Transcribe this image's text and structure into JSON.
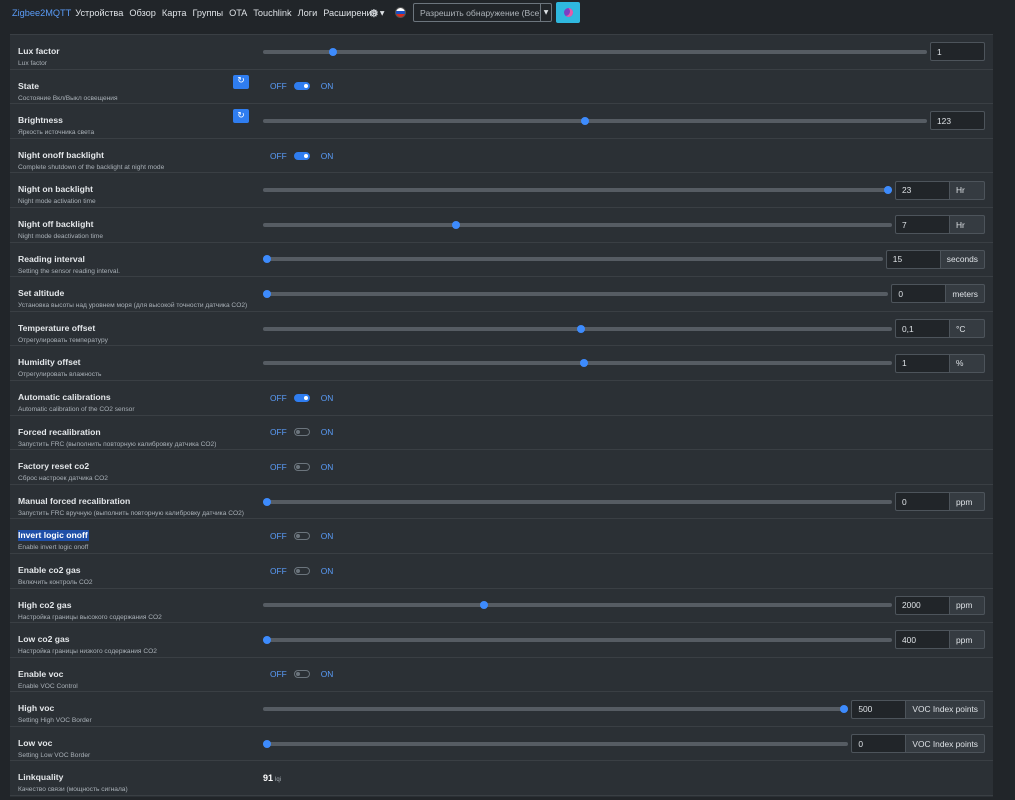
{
  "nav": {
    "brand": "Zigbee2MQTT",
    "items": [
      "Устройства",
      "Обзор",
      "Карта",
      "Группы",
      "OTA",
      "Touchlink",
      "Логи",
      "Расширения"
    ],
    "settings_icon": "gear-icon",
    "language_icon": "flag-ru-icon",
    "permit_join_select": "Разрешить обнаружение (Все)",
    "theme_icon": "theme-toggle-icon"
  },
  "toggle_labels": {
    "off": "OFF",
    "on": "ON"
  },
  "colors": {
    "accent": "#3d8bfd",
    "background": "#212529",
    "panel": "#2b3035",
    "selection": "#1f4fa8"
  },
  "rows": [
    {
      "key": "lux-factor",
      "type": "slider",
      "title": "Lux factor",
      "description": "Lux factor",
      "value": "1",
      "unit": null,
      "level": 0.1
    },
    {
      "key": "state",
      "type": "toggle",
      "title": "State",
      "description": "Состояние Вкл/Выкл освещения",
      "on": true,
      "refresh": true
    },
    {
      "key": "brightness",
      "type": "slider",
      "title": "Brightness",
      "description": "Яркость источника света",
      "value": "123",
      "unit": null,
      "level": 0.484,
      "refresh": true
    },
    {
      "key": "night-onoff-backlight",
      "type": "toggle",
      "title": "Night onoff backlight",
      "description": "Complete shutdown of the backlight at night mode",
      "on": true
    },
    {
      "key": "night-on-backlight",
      "type": "slider",
      "title": "Night on backlight",
      "description": "Night mode activation time",
      "value": "23",
      "unit": "Hr",
      "level": 1.0
    },
    {
      "key": "night-off-backlight",
      "type": "slider",
      "title": "Night off backlight",
      "description": "Night mode deactivation time",
      "value": "7",
      "unit": "Hr",
      "level": 0.304
    },
    {
      "key": "reading-interval",
      "type": "slider",
      "title": "Reading interval",
      "description": "Setting the sensor reading interval.",
      "value": "15",
      "unit": "seconds",
      "level": 0.0
    },
    {
      "key": "set-altitude",
      "type": "slider",
      "title": "Set altitude",
      "description": "Установка высоты над уровнем моря (для высокой точности датчика CO2)",
      "value": "0",
      "unit": "meters",
      "level": 0.0
    },
    {
      "key": "temperature-offset",
      "type": "slider",
      "title": "Temperature offset",
      "description": "Отрегулировать температуру",
      "value": "0,1",
      "unit": "°C",
      "level": 0.506
    },
    {
      "key": "humidity-offset",
      "type": "slider",
      "title": "Humidity offset",
      "description": "Отрегулировать влажность",
      "value": "1",
      "unit": "%",
      "level": 0.51
    },
    {
      "key": "automatic-calibrations",
      "type": "toggle",
      "title": "Automatic calibrations",
      "description": "Automatic calibration of the CO2 sensor",
      "on": true
    },
    {
      "key": "forced-recalibration",
      "type": "toggle",
      "title": "Forced recalibration",
      "description": "Запустить FRC (выполнить повторную калибровку датчика CO2)",
      "on": false
    },
    {
      "key": "factory-reset-co2",
      "type": "toggle",
      "title": "Factory reset co2",
      "description": "Сброс настроек датчика CO2",
      "on": false
    },
    {
      "key": "manual-forced-recalibration",
      "type": "slider",
      "title": "Manual forced recalibration",
      "description": "Запустить FRC вручную (выполнить повторную калибровку датчика CO2)",
      "value": "0",
      "unit": "ppm",
      "level": 0.0
    },
    {
      "key": "invert-logic-onoff",
      "type": "toggle",
      "title": "Invert logic onoff",
      "description": "Enable invert logic onoff",
      "on": false,
      "selected": true
    },
    {
      "key": "enable-co2-gas",
      "type": "toggle",
      "title": "Enable co2 gas",
      "description": "Включить контроль CO2",
      "on": false
    },
    {
      "key": "high-co2-gas",
      "type": "slider",
      "title": "High co2 gas",
      "description": "Настройка границы высокого содержания CO2",
      "value": "2000",
      "unit": "ppm",
      "level": 0.349
    },
    {
      "key": "low-co2-gas",
      "type": "slider",
      "title": "Low co2 gas",
      "description": "Настройка границы низкого содержания CO2",
      "value": "400",
      "unit": "ppm",
      "level": 0.0
    },
    {
      "key": "enable-voc",
      "type": "toggle",
      "title": "Enable voc",
      "description": "Enable VOC Control",
      "on": false
    },
    {
      "key": "high-voc",
      "type": "slider",
      "title": "High voc",
      "description": "Setting High VOC Border",
      "value": "500",
      "unit": "VOC Index points",
      "level": 1.0
    },
    {
      "key": "low-voc",
      "type": "slider",
      "title": "Low voc",
      "description": "Setting Low VOC Border",
      "value": "0",
      "unit": "VOC Index points",
      "level": 0.0
    },
    {
      "key": "linkquality",
      "type": "text",
      "title": "Linkquality",
      "description": "Качество связи (мощность сигнала)",
      "value": "91",
      "unit": "lqi"
    }
  ]
}
